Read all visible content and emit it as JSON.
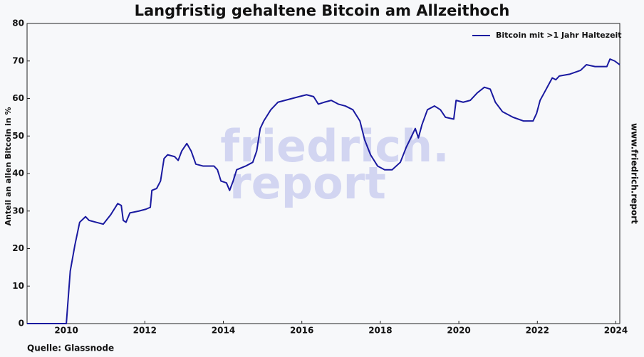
{
  "chart_data": {
    "type": "line",
    "title": "Langfristig gehaltene Bitcoin am Allzeithoch",
    "y_label": "Anteil an allen Bitcoin in %",
    "source": "Quelle: Glassnode",
    "side_text": "www.friedrich.report",
    "watermark": [
      "friedrich.",
      "report"
    ],
    "legend": "upper right",
    "xlim": [
      2009,
      2024.1
    ],
    "ylim": [
      0,
      80
    ],
    "xticks": [
      2010,
      2012,
      2014,
      2016,
      2018,
      2020,
      2022,
      2024
    ],
    "yticks": [
      0,
      10,
      20,
      30,
      40,
      50,
      60,
      70,
      80
    ],
    "x": [
      2009.0,
      2010.0,
      2010.1,
      2010.22,
      2010.34,
      2010.49,
      2010.58,
      2010.76,
      2010.94,
      2011.13,
      2011.31,
      2011.4,
      2011.45,
      2011.52,
      2011.62,
      2011.85,
      2012.03,
      2012.14,
      2012.18,
      2012.3,
      2012.4,
      2012.49,
      2012.58,
      2012.76,
      2012.85,
      2012.94,
      2013.07,
      2013.18,
      2013.3,
      2013.48,
      2013.76,
      2013.85,
      2013.94,
      2014.08,
      2014.16,
      2014.25,
      2014.34,
      2014.57,
      2014.75,
      2014.85,
      2014.94,
      2015.03,
      2015.21,
      2015.39,
      2015.57,
      2015.75,
      2015.93,
      2016.12,
      2016.3,
      2016.42,
      2016.57,
      2016.75,
      2016.93,
      2017.11,
      2017.3,
      2017.48,
      2017.6,
      2017.75,
      2017.93,
      2018.11,
      2018.3,
      2018.51,
      2018.66,
      2018.8,
      2018.89,
      2018.97,
      2019.06,
      2019.2,
      2019.38,
      2019.53,
      2019.66,
      2019.87,
      2019.93,
      2020.11,
      2020.29,
      2020.47,
      2020.65,
      2020.8,
      2020.93,
      2021.11,
      2021.38,
      2021.65,
      2021.89,
      2021.98,
      2022.07,
      2022.2,
      2022.38,
      2022.47,
      2022.56,
      2022.83,
      2023.1,
      2023.25,
      2023.47,
      2023.77,
      2023.85,
      2023.97,
      2024.1
    ],
    "series": [
      {
        "name": "Bitcoin mit >1 Jahr Haltezeit",
        "color": "#1a1aa0",
        "values": [
          0,
          0,
          14,
          21,
          27,
          28.5,
          27.5,
          27,
          26.5,
          29,
          32,
          31.5,
          27.5,
          27,
          29.5,
          30,
          30.5,
          31,
          35.5,
          36,
          38,
          44,
          45,
          44.5,
          43.5,
          46,
          48,
          46,
          42.5,
          42,
          42,
          41,
          38,
          37.5,
          35.5,
          38,
          41,
          42,
          43,
          46,
          52,
          54,
          57,
          59,
          59.5,
          60,
          60.5,
          61,
          60.5,
          58.5,
          59,
          59.5,
          58.5,
          58,
          57,
          54,
          49,
          45,
          42,
          41,
          41,
          43,
          47,
          50,
          52,
          49.5,
          53,
          57,
          58,
          57,
          55,
          54.5,
          59.5,
          59,
          59.5,
          61.5,
          63,
          62.5,
          59,
          56.5,
          55,
          54,
          54,
          56,
          59.5,
          62,
          65.5,
          65,
          66,
          66.5,
          67.5,
          69,
          68.5,
          68.5,
          70.5,
          70,
          69
        ]
      }
    ]
  }
}
